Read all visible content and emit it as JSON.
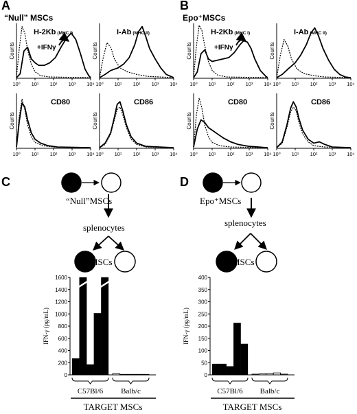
{
  "panels": {
    "A": {
      "letter": "A",
      "title": "“Null” MSCs"
    },
    "B": {
      "letter": "B",
      "title": "Epo⁺MSCs"
    },
    "C": {
      "letter": "C"
    },
    "D": {
      "letter": "D"
    }
  },
  "histograms": {
    "ylabel": "Counts",
    "ifn_label": "+IFNγ",
    "ticks": [
      "10⁰",
      "10¹",
      "10²",
      "10³",
      "10⁴"
    ],
    "plots": [
      {
        "id": "A-mhc1",
        "marker": "H-2Kb",
        "sub": "(MHC I)",
        "ifn": true,
        "sample": [
          [
            0.0,
            1
          ],
          [
            0.2,
            7
          ],
          [
            0.4,
            42
          ],
          [
            0.6,
            48
          ],
          [
            0.8,
            30
          ],
          [
            1.0,
            24
          ],
          [
            1.2,
            20
          ],
          [
            1.5,
            20
          ],
          [
            1.8,
            24
          ],
          [
            2.1,
            32
          ],
          [
            2.4,
            48
          ],
          [
            2.7,
            62
          ],
          [
            2.95,
            70
          ],
          [
            3.2,
            60
          ],
          [
            3.45,
            38
          ],
          [
            3.7,
            14
          ],
          [
            3.9,
            4
          ],
          [
            4.0,
            1
          ]
        ],
        "control": [
          [
            0.0,
            2
          ],
          [
            0.15,
            46
          ],
          [
            0.3,
            80
          ],
          [
            0.45,
            70
          ],
          [
            0.6,
            44
          ],
          [
            0.8,
            22
          ],
          [
            1.0,
            10
          ],
          [
            1.3,
            4
          ],
          [
            1.8,
            2
          ],
          [
            4.0,
            1
          ]
        ]
      },
      {
        "id": "A-iab",
        "marker": "I-Ab",
        "sub": "(MHC II)",
        "ifn": false,
        "sample": [
          [
            0.0,
            1
          ],
          [
            0.3,
            6
          ],
          [
            0.6,
            12
          ],
          [
            1.0,
            16
          ],
          [
            1.3,
            22
          ],
          [
            1.6,
            32
          ],
          [
            1.9,
            52
          ],
          [
            2.1,
            72
          ],
          [
            2.3,
            80
          ],
          [
            2.5,
            64
          ],
          [
            2.7,
            46
          ],
          [
            3.0,
            30
          ],
          [
            3.3,
            16
          ],
          [
            3.6,
            6
          ],
          [
            4.0,
            1
          ]
        ],
        "control": [
          [
            0.0,
            1
          ],
          [
            0.2,
            32
          ],
          [
            0.4,
            55
          ],
          [
            0.6,
            48
          ],
          [
            0.8,
            30
          ],
          [
            1.1,
            16
          ],
          [
            1.5,
            10
          ],
          [
            2.0,
            6
          ],
          [
            2.6,
            3
          ],
          [
            4.0,
            1
          ]
        ]
      },
      {
        "id": "A-cd80",
        "marker": "CD80",
        "sub": "",
        "ifn": false,
        "sample": [
          [
            0.0,
            2
          ],
          [
            0.15,
            42
          ],
          [
            0.3,
            70
          ],
          [
            0.45,
            64
          ],
          [
            0.6,
            44
          ],
          [
            0.8,
            24
          ],
          [
            1.0,
            14
          ],
          [
            1.3,
            8
          ],
          [
            1.7,
            4
          ],
          [
            2.2,
            2
          ],
          [
            4.0,
            1
          ]
        ],
        "control": [
          [
            0.0,
            2
          ],
          [
            0.15,
            50
          ],
          [
            0.3,
            76
          ],
          [
            0.45,
            60
          ],
          [
            0.6,
            36
          ],
          [
            0.8,
            18
          ],
          [
            1.0,
            9
          ],
          [
            1.4,
            4
          ],
          [
            2.0,
            2
          ],
          [
            4.0,
            1
          ]
        ]
      },
      {
        "id": "A-cd86",
        "marker": "CD86",
        "sub": "",
        "ifn": false,
        "sample": [
          [
            0.0,
            1
          ],
          [
            0.3,
            8
          ],
          [
            0.6,
            24
          ],
          [
            0.8,
            48
          ],
          [
            0.95,
            68
          ],
          [
            1.1,
            72
          ],
          [
            1.25,
            58
          ],
          [
            1.45,
            36
          ],
          [
            1.7,
            18
          ],
          [
            2.0,
            8
          ],
          [
            2.5,
            3
          ],
          [
            4.0,
            1
          ]
        ],
        "control": [
          [
            0.0,
            1
          ],
          [
            0.3,
            6
          ],
          [
            0.6,
            22
          ],
          [
            0.8,
            44
          ],
          [
            0.95,
            60
          ],
          [
            1.1,
            64
          ],
          [
            1.25,
            52
          ],
          [
            1.45,
            32
          ],
          [
            1.7,
            14
          ],
          [
            2.0,
            6
          ],
          [
            2.5,
            2
          ],
          [
            4.0,
            1
          ]
        ]
      },
      {
        "id": "B-mhc1",
        "marker": "H-2Kb",
        "sub": "(MHC I)",
        "ifn": true,
        "sample": [
          [
            0.0,
            1
          ],
          [
            0.2,
            10
          ],
          [
            0.4,
            38
          ],
          [
            0.6,
            44
          ],
          [
            0.8,
            30
          ],
          [
            1.0,
            26
          ],
          [
            1.3,
            28
          ],
          [
            1.6,
            30
          ],
          [
            1.9,
            32
          ],
          [
            2.2,
            40
          ],
          [
            2.5,
            52
          ],
          [
            2.7,
            58
          ],
          [
            2.9,
            56
          ],
          [
            3.1,
            46
          ],
          [
            3.3,
            30
          ],
          [
            3.6,
            12
          ],
          [
            3.9,
            3
          ],
          [
            4.0,
            1
          ]
        ],
        "control": [
          [
            0.0,
            2
          ],
          [
            0.15,
            50
          ],
          [
            0.3,
            82
          ],
          [
            0.45,
            74
          ],
          [
            0.6,
            50
          ],
          [
            0.8,
            26
          ],
          [
            1.0,
            12
          ],
          [
            1.3,
            5
          ],
          [
            1.8,
            2
          ],
          [
            4.0,
            1
          ]
        ]
      },
      {
        "id": "B-iab",
        "marker": "I-Ab",
        "sub": "(MHC II)",
        "ifn": false,
        "sample": [
          [
            0.0,
            1
          ],
          [
            0.3,
            6
          ],
          [
            0.6,
            14
          ],
          [
            1.0,
            24
          ],
          [
            1.3,
            36
          ],
          [
            1.6,
            52
          ],
          [
            1.85,
            70
          ],
          [
            2.05,
            78
          ],
          [
            2.25,
            66
          ],
          [
            2.5,
            46
          ],
          [
            2.8,
            28
          ],
          [
            3.1,
            14
          ],
          [
            3.4,
            6
          ],
          [
            3.7,
            2
          ],
          [
            4.0,
            1
          ]
        ],
        "control": [
          [
            0.0,
            1
          ],
          [
            0.2,
            36
          ],
          [
            0.4,
            60
          ],
          [
            0.6,
            50
          ],
          [
            0.8,
            30
          ],
          [
            1.1,
            14
          ],
          [
            1.5,
            7
          ],
          [
            2.0,
            4
          ],
          [
            2.6,
            2
          ],
          [
            4.0,
            1
          ]
        ]
      },
      {
        "id": "B-cd80",
        "marker": "CD80",
        "sub": "",
        "ifn": false,
        "sample": [
          [
            0.0,
            2
          ],
          [
            0.2,
            30
          ],
          [
            0.4,
            44
          ],
          [
            0.6,
            40
          ],
          [
            0.8,
            32
          ],
          [
            1.0,
            28
          ],
          [
            1.3,
            22
          ],
          [
            1.6,
            16
          ],
          [
            2.0,
            10
          ],
          [
            2.4,
            6
          ],
          [
            3.0,
            3
          ],
          [
            4.0,
            1
          ]
        ],
        "control": [
          [
            0.0,
            2
          ],
          [
            0.15,
            52
          ],
          [
            0.3,
            78
          ],
          [
            0.45,
            62
          ],
          [
            0.6,
            36
          ],
          [
            0.8,
            18
          ],
          [
            1.0,
            9
          ],
          [
            1.4,
            4
          ],
          [
            2.0,
            2
          ],
          [
            4.0,
            1
          ]
        ]
      },
      {
        "id": "B-cd86",
        "marker": "CD86",
        "sub": "",
        "ifn": false,
        "sample": [
          [
            0.0,
            1
          ],
          [
            0.3,
            10
          ],
          [
            0.55,
            36
          ],
          [
            0.75,
            62
          ],
          [
            0.9,
            72
          ],
          [
            1.05,
            64
          ],
          [
            1.2,
            46
          ],
          [
            1.4,
            28
          ],
          [
            1.7,
            14
          ],
          [
            2.0,
            8
          ],
          [
            2.3,
            10
          ],
          [
            2.6,
            6
          ],
          [
            3.0,
            2
          ],
          [
            4.0,
            1
          ]
        ],
        "control": [
          [
            0.0,
            1
          ],
          [
            0.3,
            8
          ],
          [
            0.55,
            32
          ],
          [
            0.75,
            56
          ],
          [
            0.9,
            64
          ],
          [
            1.05,
            58
          ],
          [
            1.2,
            40
          ],
          [
            1.4,
            22
          ],
          [
            1.7,
            10
          ],
          [
            2.0,
            4
          ],
          [
            2.6,
            2
          ],
          [
            4.0,
            1
          ]
        ]
      }
    ]
  },
  "schemes": {
    "C": {
      "msc_label": "“Null”MSCs",
      "spleno_label": "splenocytes",
      "target_label": "MSCs"
    },
    "D": {
      "msc_label": "Epo⁺MSCs",
      "spleno_label": "splenocytes",
      "target_label": "MSCs"
    }
  },
  "chart_data": [
    {
      "type": "bar",
      "panel": "C",
      "ylabel": "IFN-γ (pg/mL)",
      "ylim": [
        0,
        1600
      ],
      "yticks": [
        "0",
        "200",
        "400",
        "600",
        "800",
        "1000",
        "1200",
        "1400",
        "1600"
      ],
      "groups": [
        {
          "label": "C57Bl/6",
          "values": [
            270,
            1600,
            170,
            1010,
            1600
          ],
          "fill": "#000000"
        },
        {
          "label": "Balb/c",
          "values": [
            20,
            8,
            8,
            8,
            8
          ],
          "fill": "#ffffff"
        }
      ],
      "xlabel": "TARGET MSCs"
    },
    {
      "type": "bar",
      "panel": "D",
      "ylabel": "IFN-γ (pg/mL)",
      "ylim": [
        0,
        400
      ],
      "yticks": [
        "0",
        "50",
        "100",
        "150",
        "200",
        "250",
        "300",
        "350",
        "400"
      ],
      "groups": [
        {
          "label": "C57Bl/6",
          "values": [
            45,
            45,
            35,
            213,
            127
          ],
          "fill": "#000000"
        },
        {
          "label": "Balb/c",
          "values": [
            3,
            4,
            5,
            8,
            3
          ],
          "fill": "#ffffff"
        }
      ],
      "xlabel": "TARGET MSCs"
    }
  ]
}
